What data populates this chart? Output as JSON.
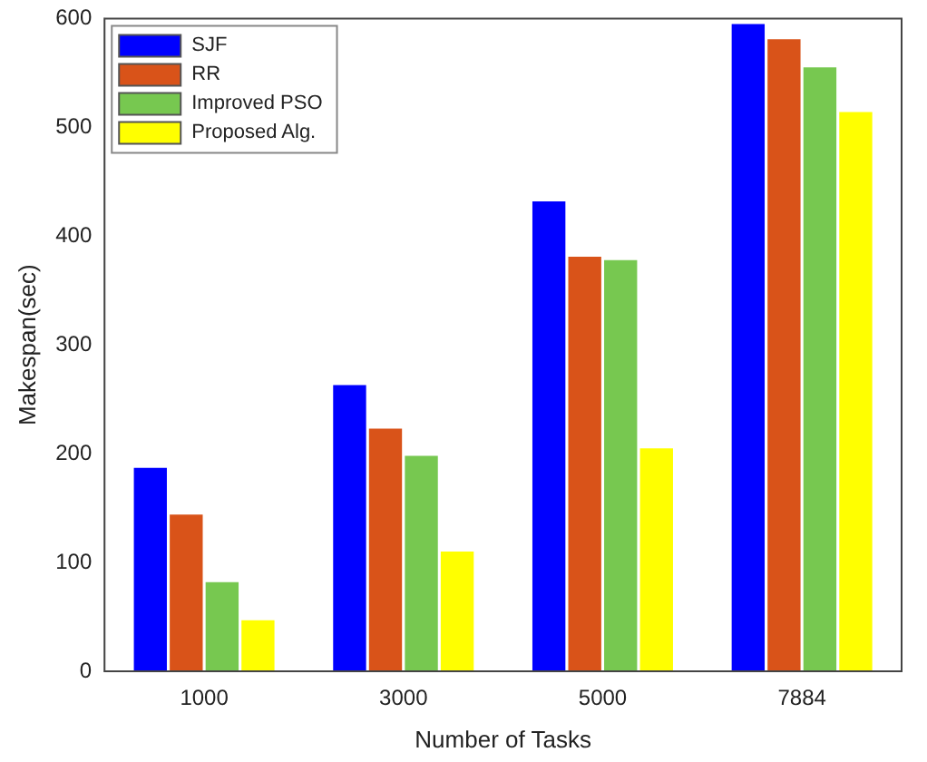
{
  "chart_data": {
    "type": "bar",
    "xlabel": "Number of Tasks",
    "ylabel": "Makespan(sec)",
    "categories": [
      "1000",
      "3000",
      "5000",
      "7884"
    ],
    "series": [
      {
        "name": "SJF",
        "color": "#0000ff",
        "values": [
          187,
          263,
          432,
          595
        ]
      },
      {
        "name": "RR",
        "color": "#d95319",
        "values": [
          144,
          223,
          381,
          581
        ]
      },
      {
        "name": "Improved PSO",
        "color": "#77c850",
        "values": [
          82,
          198,
          378,
          555
        ]
      },
      {
        "name": "Proposed Alg.",
        "color": "#ffff00",
        "values": [
          47,
          110,
          205,
          514
        ]
      }
    ],
    "ylim": [
      0,
      600
    ],
    "yticks": [
      0,
      100,
      200,
      300,
      400,
      500,
      600
    ],
    "grid": false,
    "legend": "top left"
  }
}
